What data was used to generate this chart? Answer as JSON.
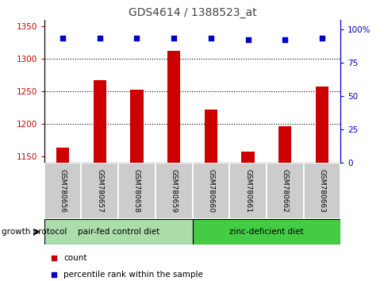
{
  "title": "GDS4614 / 1388523_at",
  "samples": [
    "GSM780656",
    "GSM780657",
    "GSM780658",
    "GSM780659",
    "GSM780660",
    "GSM780661",
    "GSM780662",
    "GSM780663"
  ],
  "counts": [
    1163,
    1267,
    1252,
    1312,
    1222,
    1157,
    1196,
    1257
  ],
  "percentiles": [
    93,
    93,
    93,
    93,
    93,
    92,
    92,
    93
  ],
  "ylim_left": [
    1140,
    1360
  ],
  "ylim_right": [
    0,
    107
  ],
  "yticks_left": [
    1150,
    1200,
    1250,
    1300,
    1350
  ],
  "yticks_right": [
    0,
    25,
    50,
    75,
    100
  ],
  "ytick_right_labels": [
    "0",
    "25",
    "50",
    "75",
    "100%"
  ],
  "bar_color": "#cc0000",
  "dot_color": "#0000cc",
  "title_color": "#444444",
  "left_axis_color": "#cc0000",
  "right_axis_color": "#0000cc",
  "group1_label": "pair-fed control diet",
  "group2_label": "zinc-deficient diet",
  "group1_color": "#aaddaa",
  "group2_color": "#44cc44",
  "sample_bg_color": "#cccccc",
  "legend_count_label": "count",
  "legend_pct_label": "percentile rank within the sample",
  "growth_protocol_label": "growth protocol",
  "grid_lines": [
    1300,
    1250,
    1200
  ],
  "bar_width": 0.35
}
